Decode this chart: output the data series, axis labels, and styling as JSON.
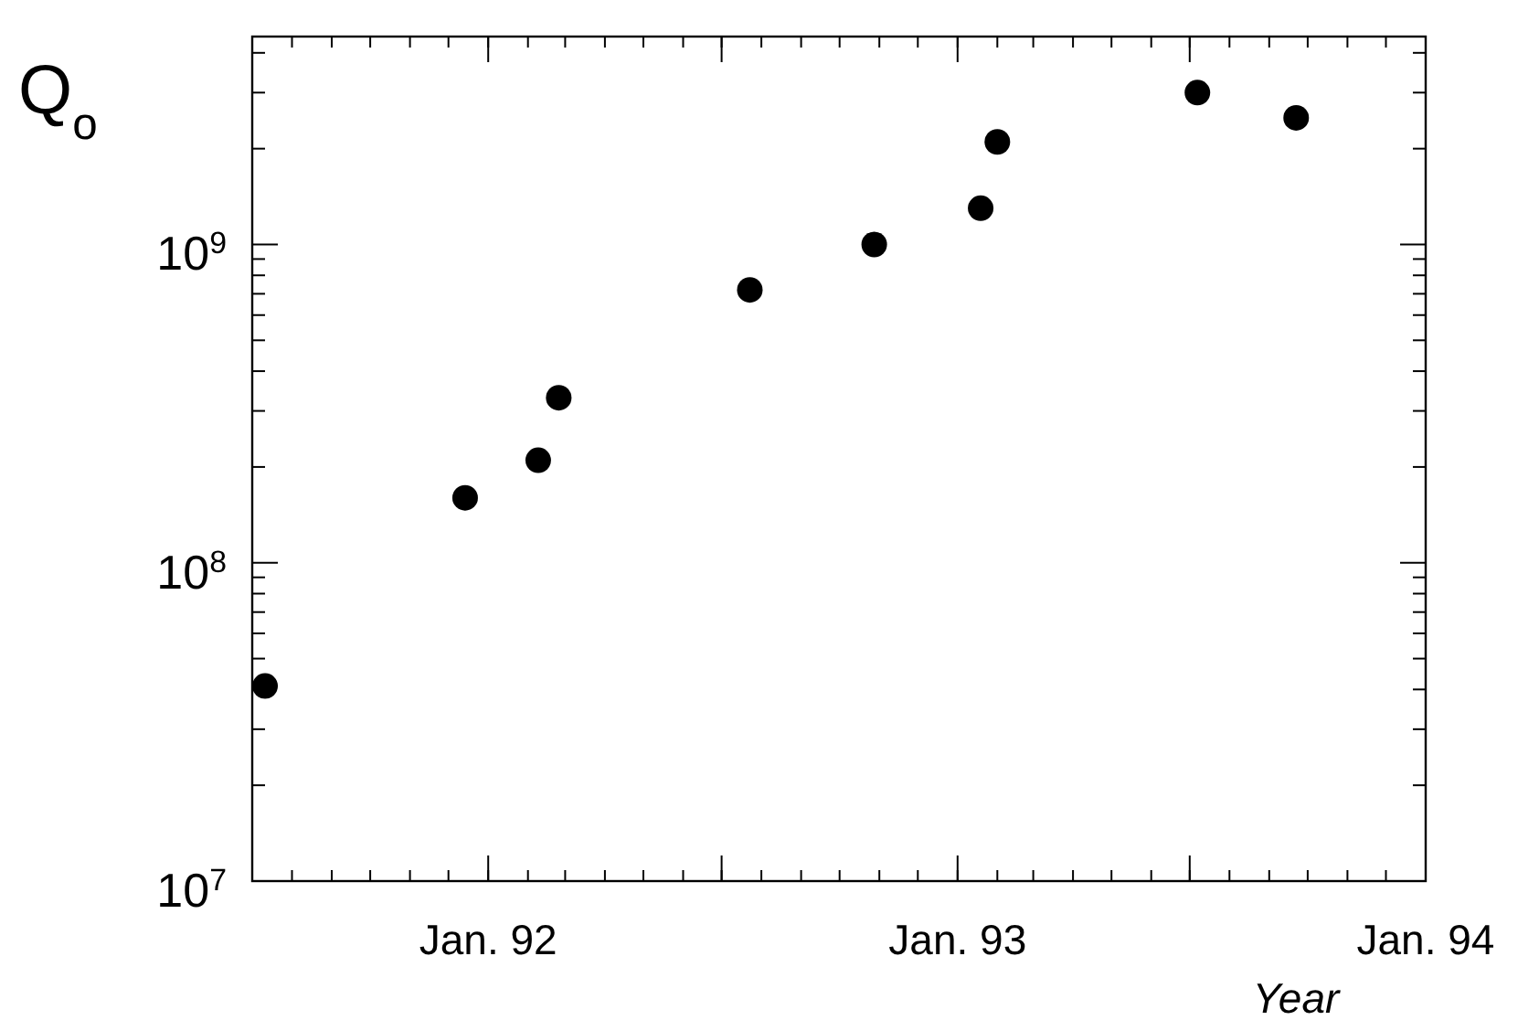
{
  "chart_data": {
    "type": "scatter",
    "xlabel": "Year",
    "ylabel": "Q$_{o}$",
    "x": [
      "1991-07-11",
      "1991-12-14",
      "1992-02-09",
      "1992-02-25",
      "1992-07-23",
      "1992-10-28",
      "1993-01-19",
      "1993-02-01",
      "1993-07-07",
      "1993-09-22"
    ],
    "values": [
      41000000.0,
      160000000.0,
      210000000.0,
      330000000.0,
      720000000.0,
      1000000000.0,
      1300000000.0,
      2100000000.0,
      3000000000.0,
      2500000000.0
    ],
    "color": "#000000",
    "marker": "circle",
    "log": "y",
    "xlim": [
      "1991-07-01",
      "1994-01-01"
    ],
    "xticks": [
      {
        "value": "1992-01-01",
        "label": "Jan. 92"
      },
      {
        "value": "1992-07-01",
        "label": null
      },
      {
        "value": "1993-01-01",
        "label": "Jan. 93"
      },
      {
        "value": "1993-07-01",
        "label": null
      },
      {
        "value": "1994-01-01",
        "label": "Jan. 94"
      }
    ],
    "ylim": [
      10000000.0,
      4500000000.0
    ],
    "yticks": [
      {
        "value": 10000000.0,
        "label": "10$^{7}$"
      },
      {
        "value": 100000000.0,
        "label": "10$^{8}$"
      },
      {
        "value": 1000000000.0,
        "label": "10$^{9}$"
      }
    ]
  }
}
